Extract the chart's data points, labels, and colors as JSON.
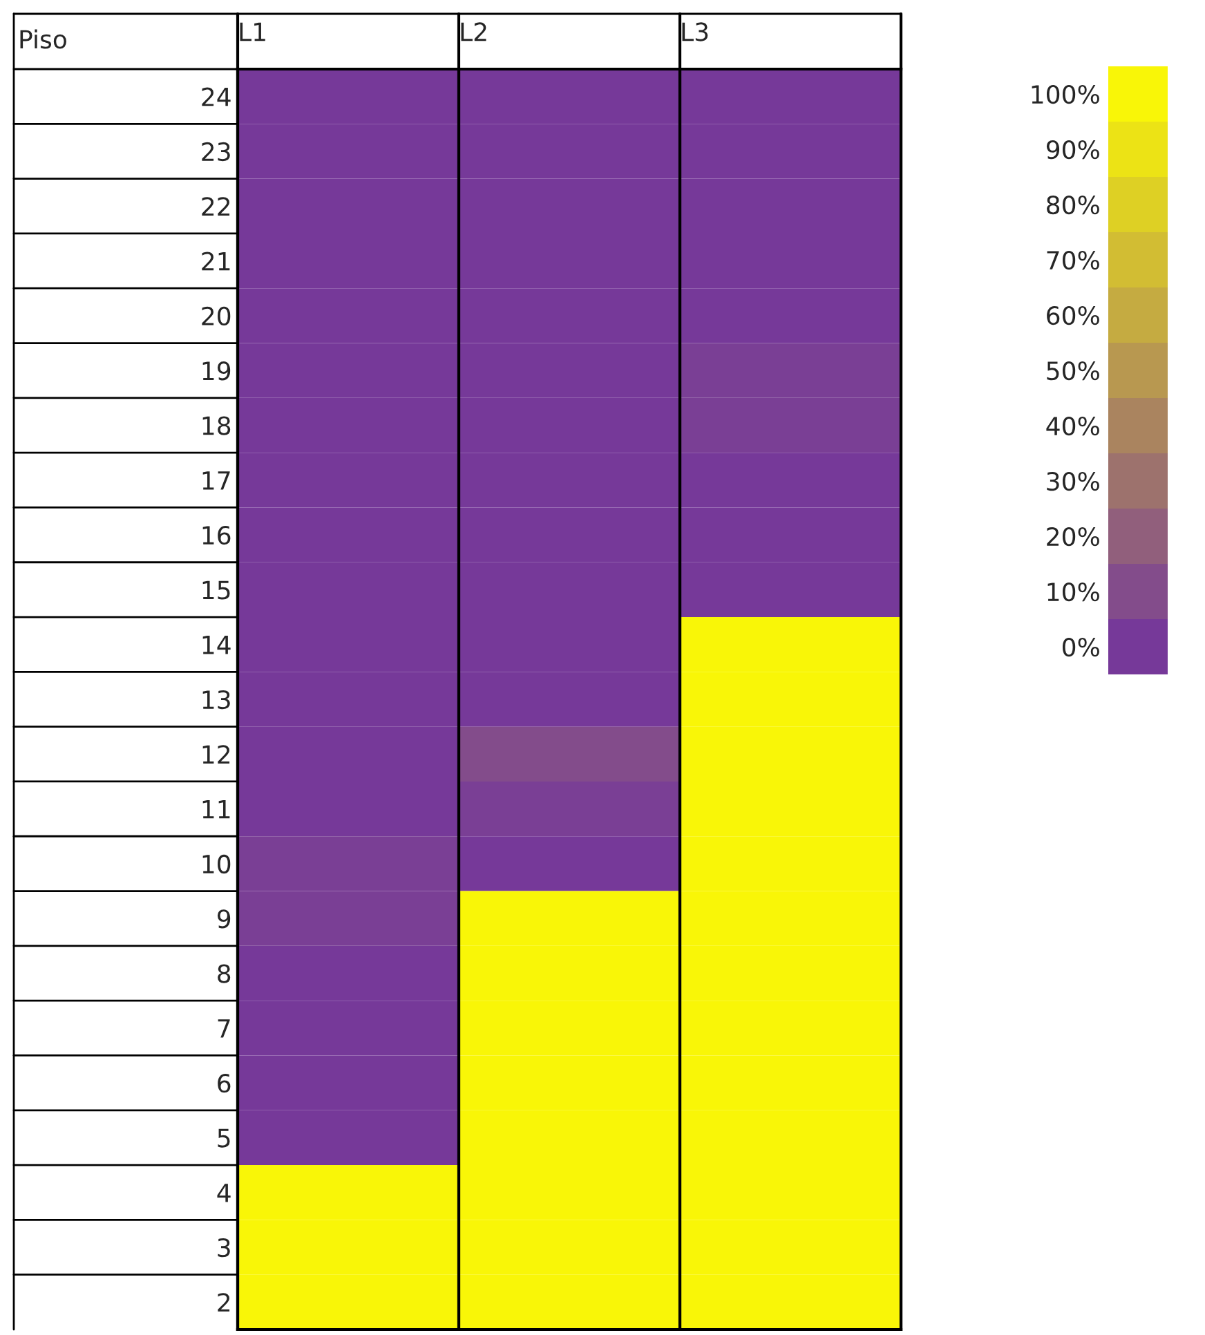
{
  "chart_data": {
    "type": "heatmap",
    "annotations": [
      "Piso"
    ],
    "categories": [
      "L1",
      "L2",
      "L3"
    ],
    "y_categories": [
      "24",
      "23",
      "22",
      "21",
      "20",
      "19",
      "18",
      "17",
      "16",
      "15",
      "14",
      "13",
      "12",
      "11",
      "10",
      "9",
      "8",
      "7",
      "6",
      "5",
      "4",
      "3",
      "2"
    ],
    "cells": [
      [
        0,
        0,
        0
      ],
      [
        0,
        0,
        0
      ],
      [
        0,
        0,
        0
      ],
      [
        0,
        0,
        0
      ],
      [
        0,
        0,
        0
      ],
      [
        0,
        0,
        3
      ],
      [
        0,
        0,
        3
      ],
      [
        0,
        0,
        0
      ],
      [
        0,
        0,
        0
      ],
      [
        0,
        0,
        0
      ],
      [
        0,
        0,
        100
      ],
      [
        0,
        0,
        100
      ],
      [
        0,
        10,
        100
      ],
      [
        0,
        3,
        100
      ],
      [
        3,
        0,
        100
      ],
      [
        3,
        100,
        100
      ],
      [
        0,
        100,
        100
      ],
      [
        0,
        100,
        100
      ],
      [
        0,
        100,
        100
      ],
      [
        0,
        100,
        100
      ],
      [
        100,
        100,
        100
      ],
      [
        100,
        100,
        100
      ],
      [
        100,
        100,
        100
      ]
    ],
    "colors": [
      "#7030a0",
      "#ffff00"
    ],
    "clim": [
      -5,
      105
    ],
    "cticks": [
      {
        "value": 0,
        "label": "0%"
      },
      {
        "value": 10,
        "label": "10%"
      },
      {
        "value": 20,
        "label": "20%"
      },
      {
        "value": 30,
        "label": "30%"
      },
      {
        "value": 40,
        "label": "40%"
      },
      {
        "value": 50,
        "label": "50%"
      },
      {
        "value": 60,
        "label": "60%"
      },
      {
        "value": 70,
        "label": "70%"
      },
      {
        "value": 80,
        "label": "80%"
      },
      {
        "value": 90,
        "label": "90%"
      },
      {
        "value": 100,
        "label": "100%"
      }
    ]
  }
}
